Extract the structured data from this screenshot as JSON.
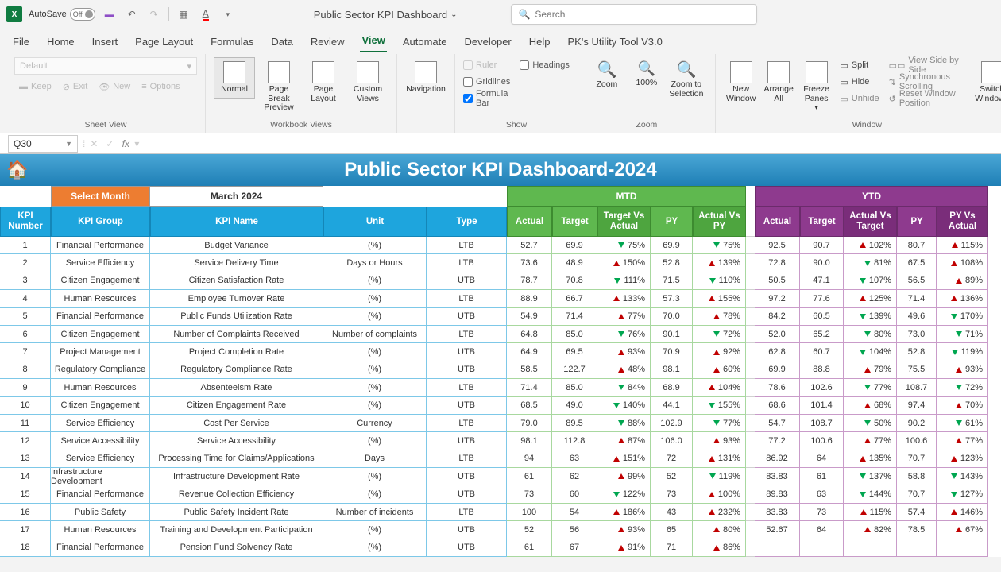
{
  "titlebar": {
    "autosave": "AutoSave",
    "autosave_state": "Off",
    "doc_name": "Public Sector KPI Dashboard",
    "search_placeholder": "Search"
  },
  "tabs": [
    "File",
    "Home",
    "Insert",
    "Page Layout",
    "Formulas",
    "Data",
    "Review",
    "View",
    "Automate",
    "Developer",
    "Help",
    "PK's Utility Tool V3.0"
  ],
  "active_tab": "View",
  "ribbon": {
    "sheet_view": {
      "default": "Default",
      "keep": "Keep",
      "exit": "Exit",
      "new": "New",
      "options": "Options",
      "label": "Sheet View"
    },
    "workbook_views": {
      "normal": "Normal",
      "pbp": "Page Break Preview",
      "pl": "Page Layout",
      "cv": "Custom Views",
      "label": "Workbook Views"
    },
    "nav": {
      "btn": "Navigation"
    },
    "show": {
      "ruler": "Ruler",
      "gridlines": "Gridlines",
      "formula": "Formula Bar",
      "headings": "Headings",
      "label": "Show"
    },
    "zoom": {
      "zoom": "Zoom",
      "z100": "100%",
      "zsel": "Zoom to Selection",
      "label": "Zoom"
    },
    "window": {
      "nw": "New Window",
      "aa": "Arrange All",
      "fp": "Freeze Panes",
      "split": "Split",
      "hide": "Hide",
      "unhide": "Unhide",
      "vsbs": "View Side by Side",
      "ss": "Synchronous Scrolling",
      "rwp": "Reset Window Position",
      "sw": "Switch Windows",
      "label": "Window"
    }
  },
  "namebox": "Q30",
  "dashboard": {
    "title": "Public Sector KPI Dashboard-2024",
    "select_month": "Select Month",
    "month": "March 2024",
    "mtd": "MTD",
    "ytd": "YTD",
    "headers": {
      "kpi_num": "KPI Number",
      "kpi_group": "KPI Group",
      "kpi_name": "KPI Name",
      "unit": "Unit",
      "type": "Type",
      "actual": "Actual",
      "target": "Target",
      "tva": "Target Vs Actual",
      "py": "PY",
      "avp": "Actual Vs PY",
      "avt": "Actual Vs Target",
      "pva": "PY Vs Actual"
    },
    "rows": [
      {
        "n": "1",
        "g": "Financial Performance",
        "name": "Budget Variance",
        "u": "(%)",
        "t": "LTB",
        "m": {
          "a": "52.7",
          "tg": "69.9",
          "tva": [
            "dn",
            "75%"
          ],
          "py": "69.9",
          "avp": [
            "dn",
            "75%"
          ]
        },
        "y": {
          "a": "92.5",
          "tg": "90.7",
          "avt": [
            "up",
            "102%"
          ],
          "py": "80.7",
          "pva": [
            "up",
            "115%"
          ]
        }
      },
      {
        "n": "2",
        "g": "Service Efficiency",
        "name": "Service Delivery Time",
        "u": "Days or Hours",
        "t": "LTB",
        "m": {
          "a": "73.6",
          "tg": "48.9",
          "tva": [
            "up",
            "150%"
          ],
          "py": "52.8",
          "avp": [
            "up",
            "139%"
          ]
        },
        "y": {
          "a": "72.8",
          "tg": "90.0",
          "avt": [
            "dn",
            "81%"
          ],
          "py": "67.5",
          "pva": [
            "up",
            "108%"
          ]
        }
      },
      {
        "n": "3",
        "g": "Citizen Engagement",
        "name": "Citizen Satisfaction Rate",
        "u": "(%)",
        "t": "UTB",
        "m": {
          "a": "78.7",
          "tg": "70.8",
          "tva": [
            "dn",
            "111%"
          ],
          "py": "71.5",
          "avp": [
            "dn",
            "110%"
          ]
        },
        "y": {
          "a": "50.5",
          "tg": "47.1",
          "avt": [
            "dn",
            "107%"
          ],
          "py": "56.5",
          "pva": [
            "up",
            "89%"
          ]
        }
      },
      {
        "n": "4",
        "g": "Human Resources",
        "name": "Employee Turnover Rate",
        "u": "(%)",
        "t": "LTB",
        "m": {
          "a": "88.9",
          "tg": "66.7",
          "tva": [
            "up",
            "133%"
          ],
          "py": "57.3",
          "avp": [
            "up",
            "155%"
          ]
        },
        "y": {
          "a": "97.2",
          "tg": "77.6",
          "avt": [
            "up",
            "125%"
          ],
          "py": "71.4",
          "pva": [
            "up",
            "136%"
          ]
        }
      },
      {
        "n": "5",
        "g": "Financial Performance",
        "name": "Public Funds Utilization Rate",
        "u": "(%)",
        "t": "UTB",
        "m": {
          "a": "54.9",
          "tg": "71.4",
          "tva": [
            "up",
            "77%"
          ],
          "py": "70.0",
          "avp": [
            "up",
            "78%"
          ]
        },
        "y": {
          "a": "84.2",
          "tg": "60.5",
          "avt": [
            "dn",
            "139%"
          ],
          "py": "49.6",
          "pva": [
            "dn",
            "170%"
          ]
        }
      },
      {
        "n": "6",
        "g": "Citizen Engagement",
        "name": "Number of Complaints Received",
        "u": "Number of complaints",
        "t": "LTB",
        "m": {
          "a": "64.8",
          "tg": "85.0",
          "tva": [
            "dn",
            "76%"
          ],
          "py": "90.1",
          "avp": [
            "dn",
            "72%"
          ]
        },
        "y": {
          "a": "52.0",
          "tg": "65.2",
          "avt": [
            "dn",
            "80%"
          ],
          "py": "73.0",
          "pva": [
            "dn",
            "71%"
          ]
        }
      },
      {
        "n": "7",
        "g": "Project Management",
        "name": "Project Completion Rate",
        "u": "(%)",
        "t": "UTB",
        "m": {
          "a": "64.9",
          "tg": "69.5",
          "tva": [
            "up",
            "93%"
          ],
          "py": "70.9",
          "avp": [
            "up",
            "92%"
          ]
        },
        "y": {
          "a": "62.8",
          "tg": "60.7",
          "avt": [
            "dn",
            "104%"
          ],
          "py": "52.8",
          "pva": [
            "dn",
            "119%"
          ]
        }
      },
      {
        "n": "8",
        "g": "Regulatory Compliance",
        "name": "Regulatory Compliance Rate",
        "u": "(%)",
        "t": "UTB",
        "m": {
          "a": "58.5",
          "tg": "122.7",
          "tva": [
            "up",
            "48%"
          ],
          "py": "98.1",
          "avp": [
            "up",
            "60%"
          ]
        },
        "y": {
          "a": "69.9",
          "tg": "88.8",
          "avt": [
            "up",
            "79%"
          ],
          "py": "75.5",
          "pva": [
            "up",
            "93%"
          ]
        }
      },
      {
        "n": "9",
        "g": "Human Resources",
        "name": "Absenteeism Rate",
        "u": "(%)",
        "t": "LTB",
        "m": {
          "a": "71.4",
          "tg": "85.0",
          "tva": [
            "dn",
            "84%"
          ],
          "py": "68.9",
          "avp": [
            "up",
            "104%"
          ]
        },
        "y": {
          "a": "78.6",
          "tg": "102.6",
          "avt": [
            "dn",
            "77%"
          ],
          "py": "108.7",
          "pva": [
            "dn",
            "72%"
          ]
        }
      },
      {
        "n": "10",
        "g": "Citizen Engagement",
        "name": "Citizen Engagement Rate",
        "u": "(%)",
        "t": "UTB",
        "m": {
          "a": "68.5",
          "tg": "49.0",
          "tva": [
            "dn",
            "140%"
          ],
          "py": "44.1",
          "avp": [
            "dn",
            "155%"
          ]
        },
        "y": {
          "a": "68.6",
          "tg": "101.4",
          "avt": [
            "up",
            "68%"
          ],
          "py": "97.4",
          "pva": [
            "up",
            "70%"
          ]
        }
      },
      {
        "n": "11",
        "g": "Service Efficiency",
        "name": "Cost Per Service",
        "u": "Currency",
        "t": "LTB",
        "m": {
          "a": "79.0",
          "tg": "89.5",
          "tva": [
            "dn",
            "88%"
          ],
          "py": "102.9",
          "avp": [
            "dn",
            "77%"
          ]
        },
        "y": {
          "a": "54.7",
          "tg": "108.7",
          "avt": [
            "dn",
            "50%"
          ],
          "py": "90.2",
          "pva": [
            "dn",
            "61%"
          ]
        }
      },
      {
        "n": "12",
        "g": "Service Accessibility",
        "name": "Service Accessibility",
        "u": "(%)",
        "t": "UTB",
        "m": {
          "a": "98.1",
          "tg": "112.8",
          "tva": [
            "up",
            "87%"
          ],
          "py": "106.0",
          "avp": [
            "up",
            "93%"
          ]
        },
        "y": {
          "a": "77.2",
          "tg": "100.6",
          "avt": [
            "up",
            "77%"
          ],
          "py": "100.6",
          "pva": [
            "up",
            "77%"
          ]
        }
      },
      {
        "n": "13",
        "g": "Service Efficiency",
        "name": "Processing Time for Claims/Applications",
        "u": "Days",
        "t": "LTB",
        "m": {
          "a": "94",
          "tg": "63",
          "tva": [
            "up",
            "151%"
          ],
          "py": "72",
          "avp": [
            "up",
            "131%"
          ]
        },
        "y": {
          "a": "86.92",
          "tg": "64",
          "avt": [
            "up",
            "135%"
          ],
          "py": "70.7",
          "pva": [
            "up",
            "123%"
          ]
        }
      },
      {
        "n": "14",
        "g": "Infrastructure Development",
        "name": "Infrastructure Development Rate",
        "u": "(%)",
        "t": "UTB",
        "m": {
          "a": "61",
          "tg": "62",
          "tva": [
            "up",
            "99%"
          ],
          "py": "52",
          "avp": [
            "dn",
            "119%"
          ]
        },
        "y": {
          "a": "83.83",
          "tg": "61",
          "avt": [
            "dn",
            "137%"
          ],
          "py": "58.8",
          "pva": [
            "dn",
            "143%"
          ]
        }
      },
      {
        "n": "15",
        "g": "Financial Performance",
        "name": "Revenue Collection Efficiency",
        "u": "(%)",
        "t": "UTB",
        "m": {
          "a": "73",
          "tg": "60",
          "tva": [
            "dn",
            "122%"
          ],
          "py": "73",
          "avp": [
            "up",
            "100%"
          ]
        },
        "y": {
          "a": "89.83",
          "tg": "63",
          "avt": [
            "dn",
            "144%"
          ],
          "py": "70.7",
          "pva": [
            "dn",
            "127%"
          ]
        }
      },
      {
        "n": "16",
        "g": "Public Safety",
        "name": "Public Safety Incident Rate",
        "u": "Number of incidents",
        "t": "LTB",
        "m": {
          "a": "100",
          "tg": "54",
          "tva": [
            "up",
            "186%"
          ],
          "py": "43",
          "avp": [
            "up",
            "232%"
          ]
        },
        "y": {
          "a": "83.83",
          "tg": "73",
          "avt": [
            "up",
            "115%"
          ],
          "py": "57.4",
          "pva": [
            "up",
            "146%"
          ]
        }
      },
      {
        "n": "17",
        "g": "Human Resources",
        "name": "Training and Development Participation",
        "u": "(%)",
        "t": "UTB",
        "m": {
          "a": "52",
          "tg": "56",
          "tva": [
            "up",
            "93%"
          ],
          "py": "65",
          "avp": [
            "up",
            "80%"
          ]
        },
        "y": {
          "a": "52.67",
          "tg": "64",
          "avt": [
            "up",
            "82%"
          ],
          "py": "78.5",
          "pva": [
            "up",
            "67%"
          ]
        }
      },
      {
        "n": "18",
        "g": "Financial Performance",
        "name": "Pension Fund Solvency Rate",
        "u": "(%)",
        "t": "UTB",
        "m": {
          "a": "61",
          "tg": "67",
          "tva": [
            "up",
            "91%"
          ],
          "py": "71",
          "avp": [
            "up",
            "86%"
          ]
        },
        "y": {
          "a": "",
          "tg": "",
          "avt": [
            "",
            ""
          ],
          "py": "",
          "pva": [
            "",
            ""
          ]
        }
      }
    ]
  }
}
